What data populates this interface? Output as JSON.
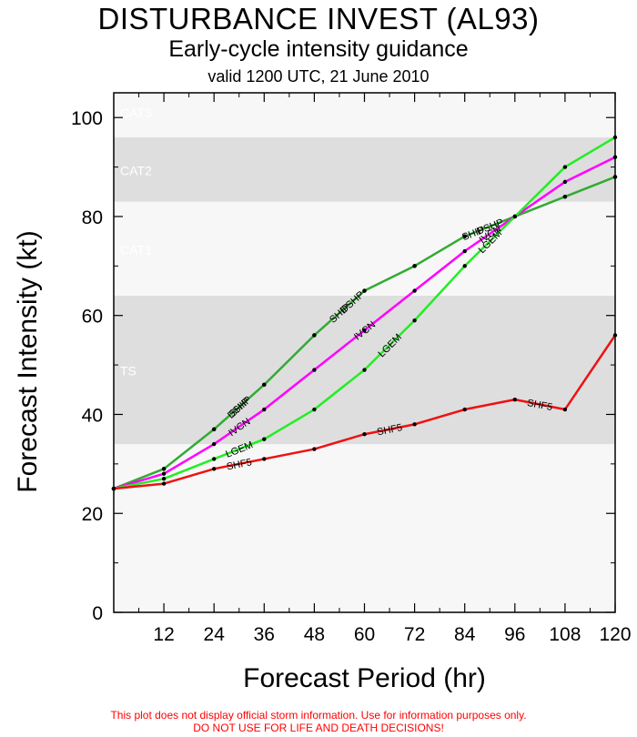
{
  "header": {
    "title": "DISTURBANCE INVEST (AL93)",
    "subtitle": "Early-cycle intensity guidance",
    "valid": "valid 1200 UTC, 21 June 2010"
  },
  "footer": {
    "line1": "This plot does not display official storm information. Use for information purposes only.",
    "line2": "DO NOT USE FOR LIFE AND DEATH DECISIONS!"
  },
  "chart_data": {
    "type": "line",
    "title": "DISTURBANCE INVEST (AL93)",
    "xlabel": "Forecast Period (hr)",
    "ylabel": "Forecast Intensity (kt)",
    "xlim": [
      0,
      120
    ],
    "ylim": [
      0,
      105
    ],
    "xticks": [
      12,
      24,
      36,
      48,
      60,
      72,
      84,
      96,
      108,
      120
    ],
    "yticks": [
      0,
      20,
      40,
      60,
      80,
      100
    ],
    "bands": [
      {
        "label": "TS",
        "from": 34,
        "to": 64,
        "color": "#dedede"
      },
      {
        "label": "CAT1",
        "from": 64,
        "to": 83,
        "color": "#f7f7f7"
      },
      {
        "label": "CAT2",
        "from": 83,
        "to": 96,
        "color": "#dedede"
      },
      {
        "label": "CAT3",
        "from": 96,
        "to": 105,
        "color": "#f7f7f7"
      }
    ],
    "series": [
      {
        "name": "DSHP",
        "color": "#33aa33",
        "x": [
          0,
          12,
          24,
          36,
          48,
          60,
          72,
          84,
          96,
          108,
          120
        ],
        "y": [
          25,
          29,
          37,
          46,
          56,
          65,
          70,
          76,
          80,
          84,
          88
        ],
        "labels_at": [
          30,
          57,
          90
        ],
        "labels": [
          "DSHP",
          "DSHP",
          "DSHP"
        ]
      },
      {
        "name": "SHIP",
        "color": "#33aa33",
        "x": [
          0,
          12,
          24,
          36,
          48,
          60,
          72,
          84,
          96,
          108,
          120
        ],
        "y": [
          25,
          29,
          37,
          46,
          56,
          65,
          70,
          76,
          80,
          84,
          88
        ],
        "labels_at": [
          30,
          54,
          86
        ],
        "labels": [
          "SHIP",
          "SHIP",
          "SHIP"
        ]
      },
      {
        "name": "IVCN",
        "color": "#ff00ff",
        "x": [
          0,
          12,
          24,
          36,
          48,
          60,
          72,
          84,
          96,
          108,
          120
        ],
        "y": [
          25,
          28,
          34,
          41,
          49,
          57,
          65,
          73,
          80,
          87,
          92
        ],
        "labels_at": [
          30,
          60,
          90
        ],
        "labels": [
          "IVCN",
          "IVCN",
          "IVCN"
        ]
      },
      {
        "name": "LGEM",
        "color": "#22ee22",
        "x": [
          0,
          12,
          24,
          36,
          48,
          60,
          72,
          84,
          96,
          108,
          120
        ],
        "y": [
          25,
          27,
          31,
          35,
          41,
          49,
          59,
          70,
          80,
          90,
          96
        ],
        "labels_at": [
          30,
          66,
          90
        ],
        "labels": [
          "LGEM",
          "LGEM",
          "LGEM"
        ]
      },
      {
        "name": "SHF5",
        "color": "#ee1111",
        "x": [
          0,
          12,
          24,
          36,
          48,
          60,
          72,
          84,
          96,
          108,
          120
        ],
        "y": [
          25,
          26,
          29,
          31,
          33,
          36,
          38,
          41,
          43,
          41,
          56
        ],
        "labels_at": [
          30,
          66,
          102
        ],
        "labels": [
          "SHF5",
          "SHF5",
          "SHF5"
        ]
      }
    ]
  }
}
